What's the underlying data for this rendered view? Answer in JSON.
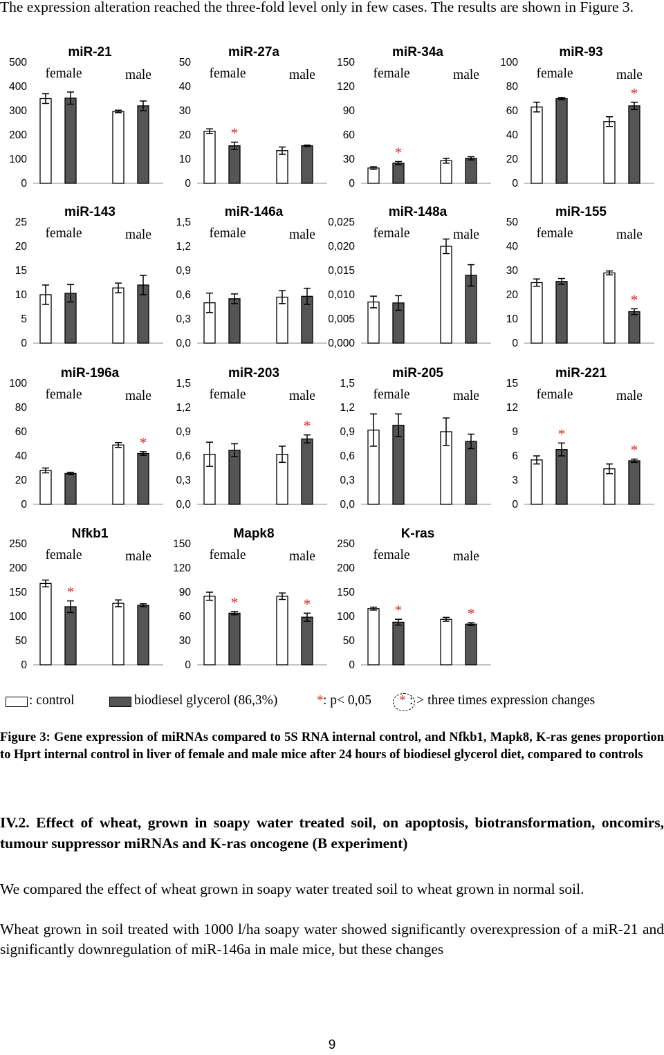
{
  "intro_text": "The expression alteration reached the three-fold level only in few cases. The results are shown in Figure 3.",
  "chart_data": {
    "type": "bar",
    "labels": {
      "female": "female",
      "male": "male"
    },
    "panels": [
      {
        "title": "miR-21",
        "yticks": [
          "0",
          "100",
          "200",
          "300",
          "400",
          "500"
        ],
        "ylim": [
          0,
          500
        ],
        "bars": [
          {
            "v": 350,
            "e": 20
          },
          {
            "v": 352,
            "e": 25
          },
          {
            "v": 297,
            "e": 5
          },
          {
            "v": 320,
            "e": 20
          }
        ],
        "stars": []
      },
      {
        "title": "miR-27a",
        "yticks": [
          "0",
          "10",
          "20",
          "30",
          "40",
          "50"
        ],
        "ylim": [
          0,
          50
        ],
        "bars": [
          {
            "v": 21.5,
            "e": 1
          },
          {
            "v": 15.5,
            "e": 1.5
          },
          {
            "v": 13.5,
            "e": 1.5
          },
          {
            "v": 15.5,
            "e": 0.3
          }
        ],
        "stars": [
          1
        ]
      },
      {
        "title": "miR-34a",
        "yticks": [
          "0",
          "30",
          "60",
          "90",
          "120",
          "150"
        ],
        "ylim": [
          0,
          150
        ],
        "bars": [
          {
            "v": 19,
            "e": 1.5
          },
          {
            "v": 25,
            "e": 2
          },
          {
            "v": 28,
            "e": 3
          },
          {
            "v": 31,
            "e": 2
          }
        ],
        "stars": [
          1
        ]
      },
      {
        "title": "miR-93",
        "yticks": [
          "0",
          "20",
          "40",
          "60",
          "80",
          "100"
        ],
        "ylim": [
          0,
          100
        ],
        "bars": [
          {
            "v": 63,
            "e": 4
          },
          {
            "v": 70,
            "e": 1
          },
          {
            "v": 51,
            "e": 4
          },
          {
            "v": 64,
            "e": 3
          }
        ],
        "stars": [
          3
        ]
      },
      {
        "title": "miR-143",
        "yticks": [
          "0",
          "5",
          "10",
          "15",
          "20",
          "25"
        ],
        "ylim": [
          0,
          25
        ],
        "bars": [
          {
            "v": 10,
            "e": 2
          },
          {
            "v": 10.3,
            "e": 1.8
          },
          {
            "v": 11.4,
            "e": 1
          },
          {
            "v": 12,
            "e": 2
          }
        ],
        "stars": []
      },
      {
        "title": "miR-146a",
        "yticks": [
          "0,0",
          "0,3",
          "0,6",
          "0,9",
          "1,2",
          "1,5"
        ],
        "ylim": [
          0,
          1.5
        ],
        "bars": [
          {
            "v": 0.5,
            "e": 0.12
          },
          {
            "v": 0.55,
            "e": 0.06
          },
          {
            "v": 0.57,
            "e": 0.08
          },
          {
            "v": 0.58,
            "e": 0.1
          }
        ],
        "stars": []
      },
      {
        "title": "miR-148a",
        "yticks": [
          "0,000",
          "0,005",
          "0,010",
          "0,015",
          "0,020",
          "0,025"
        ],
        "ylim": [
          0,
          0.025
        ],
        "bars": [
          {
            "v": 0.0085,
            "e": 0.0012
          },
          {
            "v": 0.0083,
            "e": 0.0015
          },
          {
            "v": 0.02,
            "e": 0.0015
          },
          {
            "v": 0.014,
            "e": 0.0022
          }
        ],
        "stars": []
      },
      {
        "title": "miR-155",
        "yticks": [
          "0",
          "10",
          "20",
          "30",
          "40",
          "50"
        ],
        "ylim": [
          0,
          50
        ],
        "bars": [
          {
            "v": 25,
            "e": 1.5
          },
          {
            "v": 25.5,
            "e": 1.2
          },
          {
            "v": 29,
            "e": 0.8
          },
          {
            "v": 13,
            "e": 1.2
          }
        ],
        "stars": [
          3
        ]
      },
      {
        "title": "miR-196a",
        "yticks": [
          "0",
          "20",
          "40",
          "60",
          "80",
          "100"
        ],
        "ylim": [
          0,
          100
        ],
        "bars": [
          {
            "v": 28,
            "e": 2
          },
          {
            "v": 25.5,
            "e": 1
          },
          {
            "v": 49,
            "e": 2
          },
          {
            "v": 42,
            "e": 1.5
          }
        ],
        "stars": [
          3
        ]
      },
      {
        "title": "miR-203",
        "yticks": [
          "0,0",
          "0,3",
          "0,6",
          "0,9",
          "1,2",
          "1,5"
        ],
        "ylim": [
          0,
          1.5
        ],
        "bars": [
          {
            "v": 0.62,
            "e": 0.15
          },
          {
            "v": 0.67,
            "e": 0.08
          },
          {
            "v": 0.62,
            "e": 0.1
          },
          {
            "v": 0.81,
            "e": 0.05
          }
        ],
        "stars": [
          3
        ]
      },
      {
        "title": "miR-205",
        "yticks": [
          "0,0",
          "0,3",
          "0,6",
          "0,9",
          "1,2",
          "1,5"
        ],
        "ylim": [
          0,
          1.5
        ],
        "bars": [
          {
            "v": 0.92,
            "e": 0.2
          },
          {
            "v": 0.98,
            "e": 0.14
          },
          {
            "v": 0.9,
            "e": 0.17
          },
          {
            "v": 0.78,
            "e": 0.09
          }
        ],
        "stars": []
      },
      {
        "title": "miR-221",
        "yticks": [
          "0",
          "3",
          "6",
          "9",
          "12",
          "15"
        ],
        "ylim": [
          0,
          15
        ],
        "bars": [
          {
            "v": 5.5,
            "e": 0.5
          },
          {
            "v": 6.8,
            "e": 0.8
          },
          {
            "v": 4.4,
            "e": 0.6
          },
          {
            "v": 5.4,
            "e": 0.2
          }
        ],
        "stars": [
          1,
          3
        ]
      },
      {
        "title": "Nfkb1",
        "yticks": [
          "0",
          "50",
          "100",
          "150",
          "200",
          "250"
        ],
        "ylim": [
          0,
          250
        ],
        "bars": [
          {
            "v": 168,
            "e": 7
          },
          {
            "v": 120,
            "e": 12
          },
          {
            "v": 127,
            "e": 7
          },
          {
            "v": 123,
            "e": 3
          }
        ],
        "stars": [
          1
        ]
      },
      {
        "title": "Mapk8",
        "yticks": [
          "0",
          "30",
          "60",
          "90",
          "120",
          "150"
        ],
        "ylim": [
          0,
          150
        ],
        "bars": [
          {
            "v": 85,
            "e": 5
          },
          {
            "v": 64,
            "e": 2
          },
          {
            "v": 85,
            "e": 4
          },
          {
            "v": 59,
            "e": 5
          }
        ],
        "stars": [
          1,
          3
        ]
      },
      {
        "title": "K-ras",
        "yticks": [
          "0",
          "50",
          "100",
          "150",
          "200",
          "250"
        ],
        "ylim": [
          0,
          250
        ],
        "bars": [
          {
            "v": 116,
            "e": 3
          },
          {
            "v": 88,
            "e": 6
          },
          {
            "v": 94,
            "e": 4
          },
          {
            "v": 84,
            "e": 3
          }
        ],
        "stars": [
          1,
          3
        ]
      }
    ]
  },
  "legend": {
    "control": ": control",
    "treatment": "biodiesel glycerol (86,3%)",
    "p_star": "*",
    "p_text": ": p< 0,05",
    "fold_star": "*",
    "fold_text": ": > three times expression changes"
  },
  "caption": "Figure 3: Gene expression of miRNAs compared to 5S RNA internal control, and Nfkb1, Mapk8, K-ras genes proportion to Hprt internal control in liver of female and male mice after 24 hours of biodiesel glycerol diet, compared to controls",
  "section_heading": "IV.2. Effect of wheat, grown in soapy water treated soil, on apoptosis, biotransformation, oncomirs, tumour suppressor miRNAs and K-ras oncogene (B experiment)",
  "paragraph1": "We compared the effect of wheat grown in soapy water treated soil to wheat grown in normal soil.",
  "paragraph2": "Wheat grown in soil treated with 1000 l/ha soapy water showed significantly overexpression of a miR-21 and significantly downregulation of miR-146a in male mice, but these changes",
  "page_number": "9"
}
